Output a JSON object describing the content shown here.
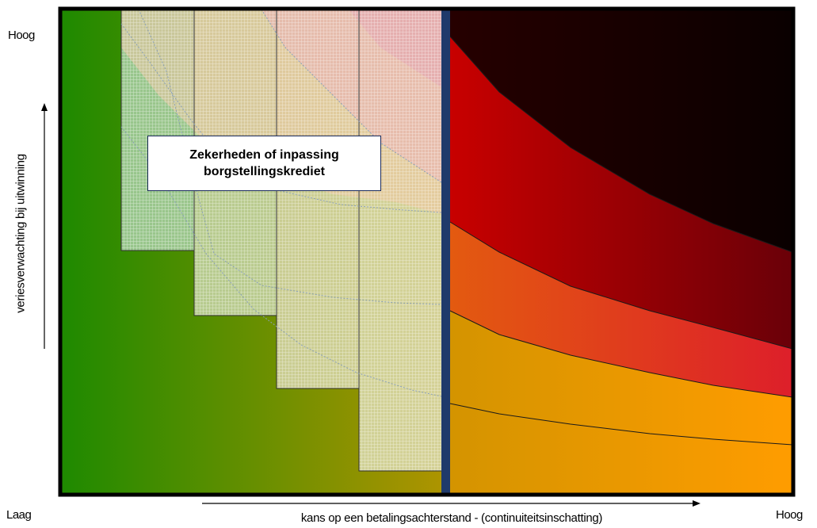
{
  "labels": {
    "y_high": "Hoog",
    "x_low": "Laag",
    "x_high": "Hoog",
    "x_axis": "kans op een betalingsachterstand - (continuiteitsinschatting)",
    "y_axis": "veriesverwachting bij uitwinning"
  },
  "callout": {
    "text": "Zekerheden of inpassing\nborgstellingskrediet"
  },
  "colors": {
    "frame": "#000000",
    "divider": "#1f3a6b",
    "gradient_left": [
      "#1e8a00",
      "#b09400"
    ],
    "zone_orange": [
      "#d49400",
      "#ff9d00"
    ],
    "zone_red_orange": [
      "#d96818",
      "#e8392a"
    ],
    "zone_red": [
      "#c40000",
      "#7a0000"
    ],
    "zone_dark": [
      "#2a0000",
      "#0d0000"
    ]
  }
}
